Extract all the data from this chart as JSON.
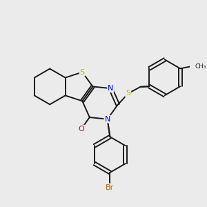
{
  "background_color": "#ebebeb",
  "bond_color": "#1a1a1a",
  "S_color": "#b8b800",
  "N_color": "#0000ee",
  "O_color": "#ee0000",
  "Br_color": "#bb6600",
  "line_width": 1.4,
  "figsize": [
    3.0,
    3.0
  ],
  "dpi": 100,
  "xlim": [
    0,
    10
  ],
  "ylim": [
    0,
    10
  ]
}
